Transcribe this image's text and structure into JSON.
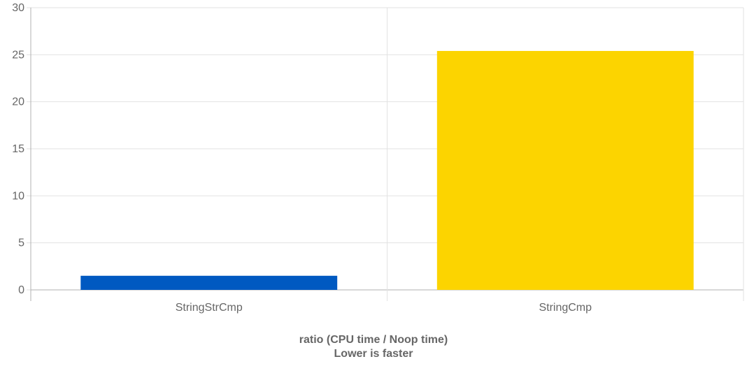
{
  "chart_data": {
    "type": "bar",
    "categories": [
      "StringStrCmp",
      "StringCmp"
    ],
    "values": [
      1.5,
      25.4
    ],
    "colors": [
      "#0059c1",
      "#fcd400"
    ],
    "ylim": [
      0,
      30
    ],
    "yticks": [
      0,
      5,
      10,
      15,
      20,
      25,
      30
    ],
    "xlabel": [
      "ratio (CPU time / Noop time)",
      "Lower is faster"
    ],
    "ylabel": "",
    "grid": true,
    "legend": "none"
  }
}
